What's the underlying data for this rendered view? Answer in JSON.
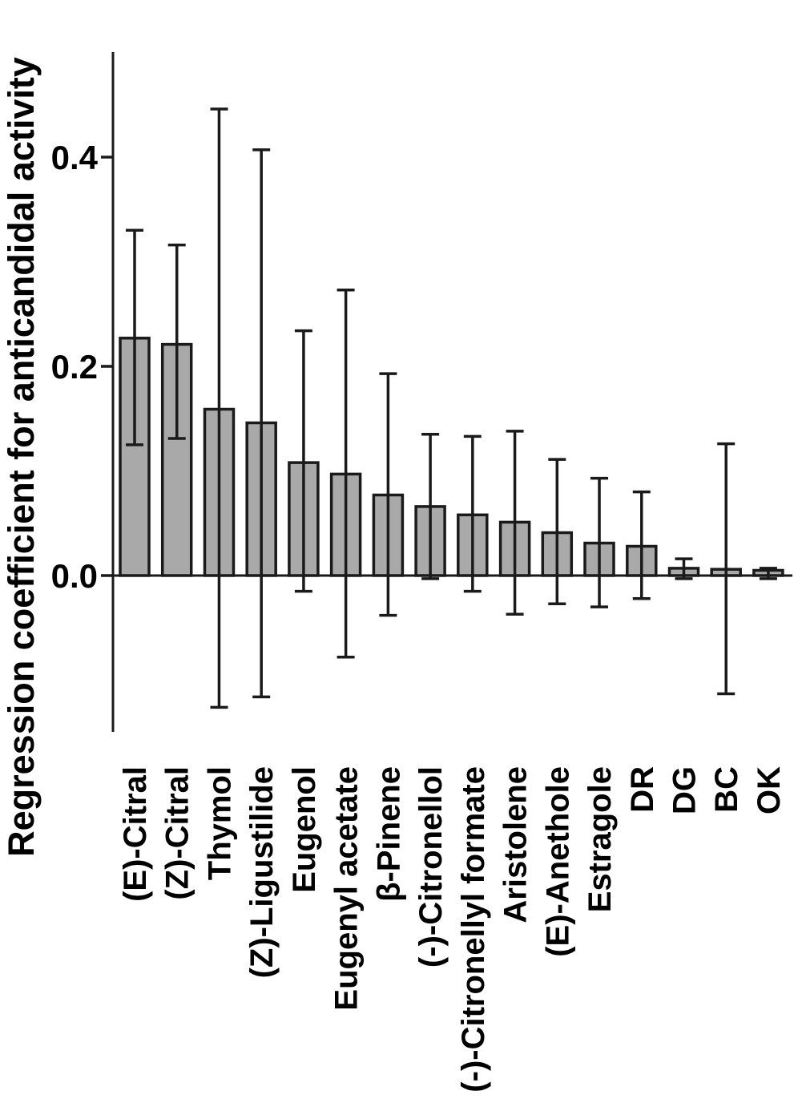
{
  "figure": {
    "background": "#ffffff"
  },
  "chart_data": {
    "type": "bar",
    "title": "",
    "xlabel": "",
    "ylabel": "Regression coefficient for anticandidal activity",
    "legend_position": "none",
    "grid": false,
    "orientation": "vertical",
    "x_tick_rotation_deg": 90,
    "categories": [
      "(E)-Citral",
      "(Z)-Citral",
      "Thymol",
      "(Z)-Ligustilide",
      "Eugenol",
      "Eugenyl acetate",
      "β-Pinene",
      "(-)-Citronellol",
      "(-)-Citronellyl formate",
      "Aristolene",
      "(E)-Anethole",
      "Estragole",
      "DR",
      "DG",
      "BC",
      "OK"
    ],
    "series": [
      {
        "name": "Regression coefficient",
        "values": [
          0.227,
          0.221,
          0.159,
          0.146,
          0.108,
          0.097,
          0.077,
          0.066,
          0.058,
          0.051,
          0.041,
          0.031,
          0.028,
          0.007,
          0.006,
          0.005
        ],
        "error_high": [
          0.33,
          0.316,
          0.446,
          0.407,
          0.234,
          0.273,
          0.193,
          0.135,
          0.133,
          0.138,
          0.111,
          0.093,
          0.08,
          0.016,
          0.126,
          0.007
        ],
        "error_low": [
          0.125,
          0.131,
          -0.126,
          -0.116,
          -0.015,
          -0.078,
          -0.038,
          -0.003,
          -0.015,
          -0.037,
          -0.027,
          -0.03,
          -0.022,
          -0.003,
          -0.113,
          -0.003
        ]
      }
    ],
    "y_ticks": [
      0.0,
      0.2,
      0.4
    ],
    "y_tick_labels": [
      "0.0",
      "0.2",
      "0.4"
    ],
    "ylim": [
      -0.15,
      0.5
    ],
    "bar_fill_color": "#a9a9a9",
    "bar_edge_color": "#1a1a1a",
    "error_bar_color": "#1a1a1a",
    "axis_color": "#1a1a1a"
  }
}
